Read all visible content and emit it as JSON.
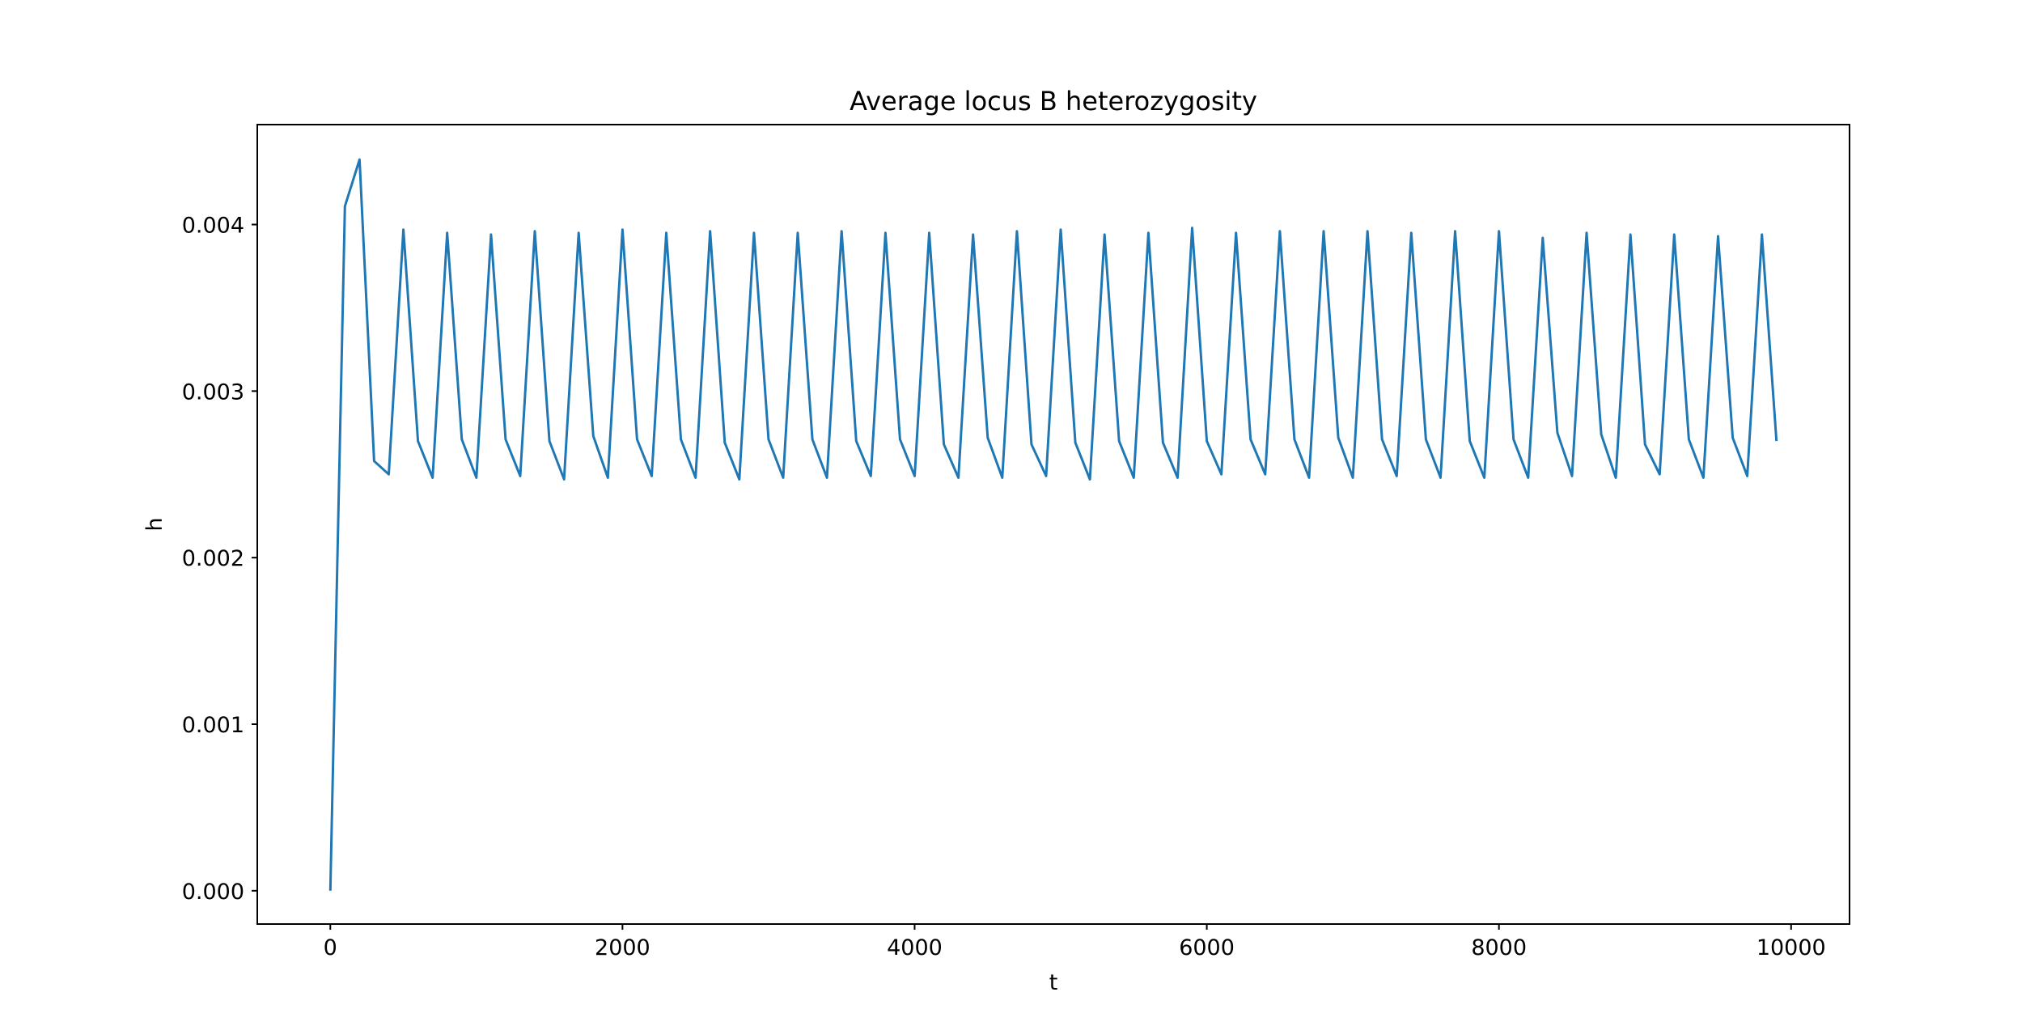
{
  "chart_data": {
    "type": "line",
    "title": "Average locus B heterozygosity",
    "xlabel": "t",
    "ylabel": "h",
    "xlim": [
      -500,
      10400
    ],
    "ylim": [
      -0.0002,
      0.0046
    ],
    "xticks": [
      0,
      2000,
      4000,
      6000,
      8000,
      10000
    ],
    "xtick_labels": [
      "0",
      "2000",
      "4000",
      "6000",
      "8000",
      "10000"
    ],
    "yticks": [
      0.0,
      0.001,
      0.002,
      0.003,
      0.004
    ],
    "ytick_labels": [
      "0.000",
      "0.001",
      "0.002",
      "0.003",
      "0.004"
    ],
    "grid": false,
    "legend": "none",
    "series": [
      {
        "color": "#1f77b4",
        "x": [
          0,
          100,
          200,
          300,
          400,
          500,
          600,
          700,
          800,
          900,
          1000,
          1100,
          1200,
          1300,
          1400,
          1500,
          1600,
          1700,
          1800,
          1900,
          2000,
          2100,
          2200,
          2300,
          2400,
          2500,
          2600,
          2700,
          2800,
          2900,
          3000,
          3100,
          3200,
          3300,
          3400,
          3500,
          3600,
          3700,
          3800,
          3900,
          4000,
          4100,
          4200,
          4300,
          4400,
          4500,
          4600,
          4700,
          4800,
          4900,
          5000,
          5100,
          5200,
          5300,
          5400,
          5500,
          5600,
          5700,
          5800,
          5900,
          6000,
          6100,
          6200,
          6300,
          6400,
          6500,
          6600,
          6700,
          6800,
          6900,
          7000,
          7100,
          7200,
          7300,
          7400,
          7500,
          7600,
          7700,
          7800,
          7900,
          8000,
          8100,
          8200,
          8300,
          8400,
          8500,
          8600,
          8700,
          8800,
          8900,
          9000,
          9100,
          9200,
          9300,
          9400,
          9500,
          9600,
          9700,
          9800,
          9900
        ],
        "y": [
          0.0,
          0.00411,
          0.00439,
          0.00258,
          0.0025,
          0.00397,
          0.0027,
          0.00248,
          0.00395,
          0.00271,
          0.00248,
          0.00394,
          0.00271,
          0.00249,
          0.00396,
          0.0027,
          0.00247,
          0.00395,
          0.00273,
          0.00248,
          0.00397,
          0.00271,
          0.00249,
          0.00395,
          0.00271,
          0.00248,
          0.00396,
          0.00269,
          0.00247,
          0.00395,
          0.00271,
          0.00248,
          0.00395,
          0.00271,
          0.00248,
          0.00396,
          0.0027,
          0.00249,
          0.00395,
          0.00271,
          0.00249,
          0.00395,
          0.00268,
          0.00248,
          0.00394,
          0.00272,
          0.00248,
          0.00396,
          0.00268,
          0.00249,
          0.00397,
          0.00269,
          0.00247,
          0.00394,
          0.0027,
          0.00248,
          0.00395,
          0.00269,
          0.00248,
          0.00398,
          0.0027,
          0.0025,
          0.00395,
          0.00271,
          0.0025,
          0.00396,
          0.00271,
          0.00248,
          0.00396,
          0.00272,
          0.00248,
          0.00396,
          0.00271,
          0.00249,
          0.00395,
          0.00271,
          0.00248,
          0.00396,
          0.0027,
          0.00248,
          0.00396,
          0.00271,
          0.00248,
          0.00392,
          0.00275,
          0.00249,
          0.00395,
          0.00274,
          0.00248,
          0.00394,
          0.00268,
          0.0025,
          0.00394,
          0.00271,
          0.00248,
          0.00393,
          0.00272,
          0.00249,
          0.00394,
          0.0027
        ]
      }
    ]
  }
}
